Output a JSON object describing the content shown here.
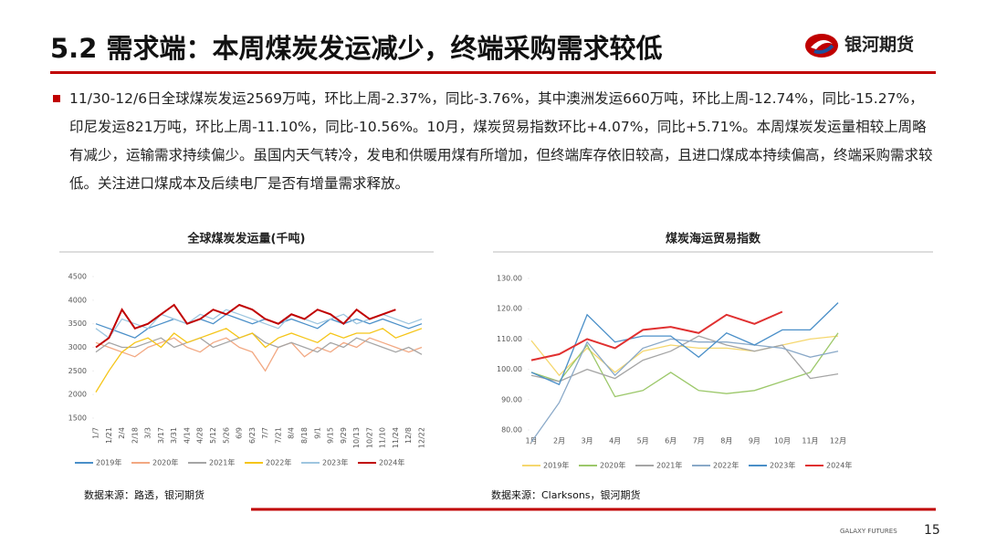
{
  "header": {
    "title": "5.2 需求端：本周煤炭发运减少，终端采购需求较低",
    "logo": "银河期货"
  },
  "body": {
    "text": "11/30-12/6日全球煤炭发运2569万吨，环比上周-2.37%，同比-3.76%，其中澳洲发运660万吨，环比上周-12.74%，同比-15.27%，印尼发运821万吨，环比上周-11.10%，同比-10.56%。10月，煤炭贸易指数环比+4.07%，同比+5.71%。本周煤炭发运量相较上周略有减少，运输需求持续偏少。虽国内天气转冷，发电和供暖用煤有所增加，但终端库存依旧较高，且进口煤成本持续偏高，终端采购需求较低。关注进口煤成本及后续电厂是否有增量需求释放。"
  },
  "chart_data": [
    {
      "type": "line",
      "title": "全球煤炭发运量(千吨)",
      "source": "数据来源：路透，银河期货",
      "categories": [
        "1/7",
        "1/21",
        "2/4",
        "2/18",
        "3/3",
        "3/17",
        "3/31",
        "4/14",
        "4/28",
        "5/12",
        "5/26",
        "6/9",
        "6/23",
        "7/7",
        "7/21",
        "8/4",
        "8/18",
        "9/1",
        "9/15",
        "9/29",
        "10/13",
        "10/27",
        "11/10",
        "11/24",
        "12/8",
        "12/22"
      ],
      "ylim": [
        1500,
        4500
      ],
      "yticks": [
        1500,
        2000,
        2500,
        3000,
        3500,
        4000,
        4500
      ],
      "series": [
        {
          "name": "2019年",
          "color": "#4a8fc8",
          "values": [
            3500,
            3400,
            3300,
            3200,
            3400,
            3500,
            3600,
            3500,
            3600,
            3500,
            3700,
            3600,
            3500,
            3600,
            3500,
            3600,
            3500,
            3400,
            3600,
            3500,
            3600,
            3500,
            3600,
            3500,
            3400,
            3500
          ]
        },
        {
          "name": "2020年",
          "color": "#f2a882",
          "values": [
            3100,
            3000,
            2900,
            2800,
            3000,
            3100,
            3200,
            3000,
            2900,
            3100,
            3200,
            3000,
            2900,
            2500,
            3000,
            3100,
            2800,
            3000,
            2900,
            3100,
            3000,
            3200,
            3100,
            3000,
            2900,
            3000
          ]
        },
        {
          "name": "2021年",
          "color": "#a5a5a5",
          "values": [
            2900,
            3100,
            3000,
            3000,
            3100,
            3200,
            3000,
            3100,
            3200,
            3000,
            3100,
            3200,
            3300,
            3100,
            3000,
            3100,
            3000,
            2900,
            3100,
            3000,
            3200,
            3100,
            3000,
            2900,
            3000,
            2850
          ]
        },
        {
          "name": "2022年",
          "color": "#f5c518",
          "values": [
            2050,
            2500,
            2900,
            3100,
            3200,
            3000,
            3300,
            3100,
            3200,
            3300,
            3400,
            3200,
            3300,
            3000,
            3200,
            3300,
            3200,
            3100,
            3300,
            3200,
            3300,
            3300,
            3400,
            3200,
            3300,
            3400
          ]
        },
        {
          "name": "2023年",
          "color": "#9ec6e0",
          "values": [
            3400,
            3200,
            3600,
            3500,
            3400,
            3700,
            3600,
            3500,
            3700,
            3600,
            3800,
            3700,
            3600,
            3500,
            3400,
            3700,
            3600,
            3500,
            3600,
            3700,
            3500,
            3600,
            3700,
            3600,
            3500,
            3600
          ]
        },
        {
          "name": "2024年",
          "color": "#c00000",
          "values": [
            3000,
            3200,
            3800,
            3400,
            3500,
            3700,
            3900,
            3500,
            3600,
            3800,
            3700,
            3900,
            3800,
            3600,
            3500,
            3700,
            3600,
            3800,
            3700,
            3500,
            3800,
            3600,
            3700,
            3800,
            null,
            null
          ]
        }
      ]
    },
    {
      "type": "line",
      "title": "煤炭海运贸易指数",
      "source": "数据来源：Clarksons，银河期货",
      "categories": [
        "1月",
        "2月",
        "3月",
        "4月",
        "5月",
        "6月",
        "7月",
        "8月",
        "9月",
        "10月",
        "11月",
        "12月"
      ],
      "ylim": [
        80,
        130
      ],
      "yticks": [
        {
          "value": 80,
          "label": "80.00"
        },
        {
          "value": 90,
          "label": "90.00"
        },
        {
          "value": 100,
          "label": "100.00"
        },
        {
          "value": 110,
          "label": "110.00"
        },
        {
          "value": 120,
          "label": "120.00"
        },
        {
          "value": 130,
          "label": "130.00"
        }
      ],
      "series": [
        {
          "name": "2019年",
          "color": "#f5d76e",
          "values": [
            109.5,
            98,
            107,
            99,
            106,
            108,
            107,
            107,
            106,
            108,
            110,
            111
          ]
        },
        {
          "name": "2020年",
          "color": "#9cc86a",
          "values": [
            99,
            96,
            108,
            91,
            93,
            99,
            93,
            92,
            93,
            96,
            99,
            112
          ]
        },
        {
          "name": "2021年",
          "color": "#a5a5a5",
          "values": [
            98,
            96,
            100,
            97,
            103,
            106,
            111,
            108,
            106,
            108,
            97,
            98.5
          ]
        },
        {
          "name": "2022年",
          "color": "#8aa9c8",
          "values": [
            76,
            89,
            109,
            98,
            107,
            110,
            109,
            109,
            108,
            107,
            104,
            106
          ]
        },
        {
          "name": "2023年",
          "color": "#4a8fc8",
          "values": [
            99,
            95,
            118,
            109,
            111,
            111,
            104,
            112,
            108,
            113,
            113,
            122
          ]
        },
        {
          "name": "2024年",
          "color": "#e03030",
          "values": [
            103,
            105,
            110,
            107,
            113,
            114,
            112,
            118,
            115,
            119,
            null,
            null
          ]
        }
      ]
    }
  ],
  "footer": {
    "brand": "GALAXY FUTURES",
    "page": "15"
  }
}
